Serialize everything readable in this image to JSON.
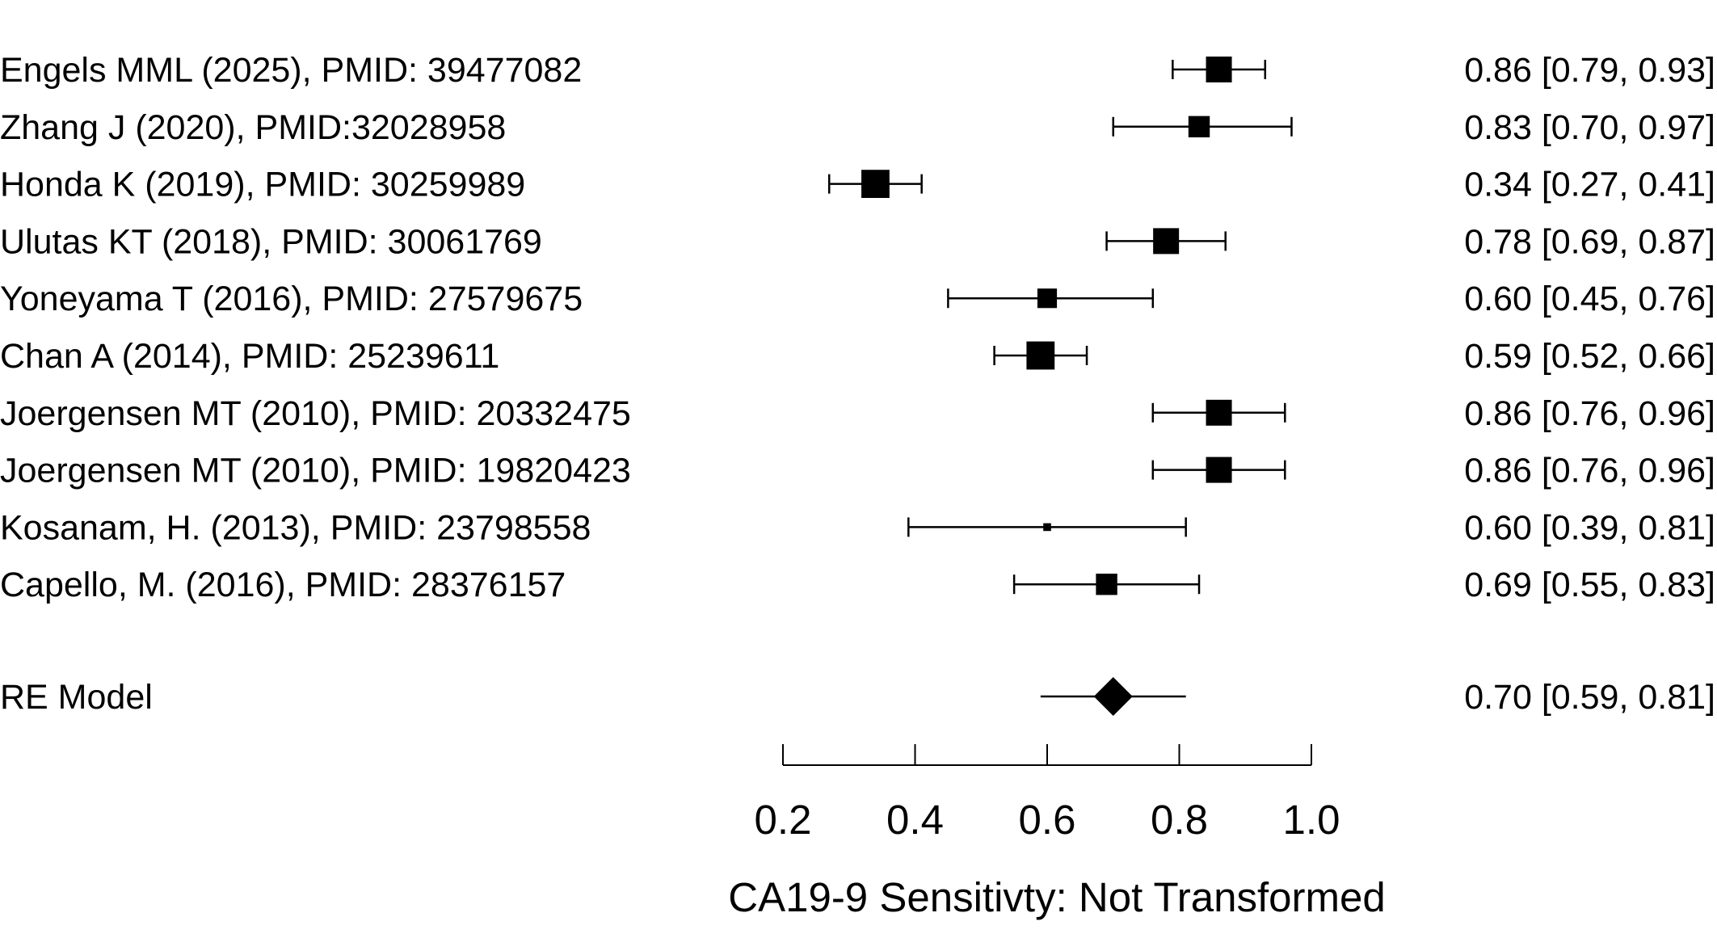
{
  "chart_data": {
    "type": "forest",
    "xlabel": "CA19-9 Sensitivty: Not Transformed",
    "xlim": [
      0.2,
      1.0
    ],
    "xticks": [
      {
        "value": 0.2,
        "label": "0.2"
      },
      {
        "value": 0.4,
        "label": "0.4"
      },
      {
        "value": 0.6,
        "label": "0.6"
      },
      {
        "value": 0.8,
        "label": "0.8"
      },
      {
        "value": 1.0,
        "label": "1.0"
      }
    ],
    "studies": [
      {
        "label": "Engels MML (2025), PMID: 39477082",
        "estimate": 0.86,
        "lower": 0.79,
        "upper": 0.93,
        "text": "0.86 [0.79, 0.93]",
        "weight": 1.0
      },
      {
        "label": "Zhang J (2020), PMID:32028958",
        "estimate": 0.83,
        "lower": 0.7,
        "upper": 0.97,
        "text": "0.83 [0.70, 0.97]",
        "weight": 0.8
      },
      {
        "label": "Honda K (2019), PMID: 30259989",
        "estimate": 0.34,
        "lower": 0.27,
        "upper": 0.41,
        "text": "0.34 [0.27, 0.41]",
        "weight": 1.1
      },
      {
        "label": "Ulutas KT (2018), PMID: 30061769",
        "estimate": 0.78,
        "lower": 0.69,
        "upper": 0.87,
        "text": "0.78 [0.69, 0.87]",
        "weight": 1.0
      },
      {
        "label": "Yoneyama T (2016), PMID: 27579675",
        "estimate": 0.6,
        "lower": 0.45,
        "upper": 0.76,
        "text": "0.60 [0.45, 0.76]",
        "weight": 0.72
      },
      {
        "label": "Chan A (2014), PMID: 25239611",
        "estimate": 0.59,
        "lower": 0.52,
        "upper": 0.66,
        "text": "0.59 [0.52, 0.66]",
        "weight": 1.1
      },
      {
        "label": "Joergensen MT (2010), PMID: 20332475",
        "estimate": 0.86,
        "lower": 0.76,
        "upper": 0.96,
        "text": "0.86 [0.76, 0.96]",
        "weight": 1.0
      },
      {
        "label": "Joergensen MT (2010), PMID: 19820423",
        "estimate": 0.86,
        "lower": 0.76,
        "upper": 0.96,
        "text": "0.86 [0.76, 0.96]",
        "weight": 1.0
      },
      {
        "label": "Kosanam, H. (2013), PMID: 23798558",
        "estimate": 0.6,
        "lower": 0.39,
        "upper": 0.81,
        "text": "0.60 [0.39, 0.81]",
        "weight": 0.2
      },
      {
        "label": "Capello, M. (2016), PMID: 28376157",
        "estimate": 0.69,
        "lower": 0.55,
        "upper": 0.83,
        "text": "0.69 [0.55, 0.83]",
        "weight": 0.8
      }
    ],
    "summary": {
      "label": "RE Model",
      "estimate": 0.7,
      "lower": 0.59,
      "upper": 0.81,
      "text": "0.70 [0.59, 0.81]"
    }
  }
}
